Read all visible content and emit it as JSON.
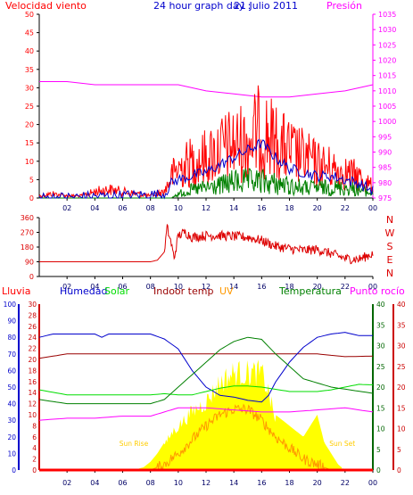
{
  "page": {
    "title_prefix": "24 hour graph day :",
    "date": "21 Julio 2011"
  },
  "colors": {
    "wind": "#ff0000",
    "wind_avg": "#0000cc",
    "wind_low": "#008000",
    "pressure": "#ff00ff",
    "direction": "#dd0000",
    "rain": "#ff0000",
    "humidity": "#0000cc",
    "solar": "#00dd00",
    "indoor": "#990000",
    "uv": "#ff9900",
    "solar_fill": "#ffff00",
    "temperature": "#008000",
    "dewpoint": "#ff00ff",
    "temp_axis": "#006600"
  },
  "chart_data": [
    {
      "type": "line",
      "id": "wind_pressure",
      "left_label": "Velocidad viento",
      "right_label": "Presión",
      "x_ticks": [
        "02",
        "04",
        "06",
        "08",
        "10",
        "12",
        "14",
        "16",
        "18",
        "20",
        "22",
        "00"
      ],
      "x_hours": [
        2,
        4,
        6,
        8,
        10,
        12,
        14,
        16,
        18,
        20,
        22,
        24
      ],
      "y_left_ticks": [
        0,
        5,
        10,
        15,
        20,
        25,
        30,
        35,
        40,
        45,
        50
      ],
      "y_left_range": [
        0,
        50
      ],
      "y_right_ticks": [
        975,
        980,
        985,
        990,
        995,
        1000,
        1005,
        1010,
        1015,
        1020,
        1025,
        1030,
        1035
      ],
      "y_right_range": [
        975,
        1035
      ],
      "series": [
        {
          "name": "Presión",
          "axis": "right",
          "x": [
            0,
            2,
            4,
            6,
            8,
            10,
            12,
            14,
            16,
            18,
            20,
            22,
            24
          ],
          "y": [
            1013,
            1013,
            1012,
            1012,
            1012,
            1012,
            1010,
            1009,
            1008,
            1008,
            1009,
            1010,
            1012
          ]
        },
        {
          "axis": "left",
          "kind": "envelope",
          "x": [
            0,
            1,
            2,
            3,
            4,
            5,
            6,
            7,
            8,
            9,
            9.5,
            10,
            11,
            12,
            13,
            14,
            15,
            16,
            17,
            18,
            19,
            20,
            21,
            22,
            23,
            24
          ],
          "y": [
            1,
            2,
            1,
            1,
            3,
            4,
            3,
            2,
            1,
            3,
            10,
            14,
            17,
            19,
            23,
            25,
            27,
            32,
            26,
            22,
            19,
            16,
            14,
            12,
            10,
            5
          ]
        },
        {
          "axis": "left",
          "kind": "line",
          "x": [
            0,
            9,
            9.5,
            10,
            11,
            12,
            13,
            14,
            15,
            16,
            17,
            18,
            19,
            20,
            21,
            22,
            23,
            24
          ],
          "y": [
            0,
            1,
            4,
            5,
            6,
            7,
            9,
            11,
            13,
            15,
            11,
            8,
            7,
            6,
            6,
            5,
            4,
            2
          ]
        },
        {
          "axis": "left",
          "kind": "envelope",
          "x": [
            0,
            9.5,
            10,
            11,
            12,
            13,
            14,
            15,
            16,
            17,
            18,
            19,
            20,
            21,
            22,
            23,
            24
          ],
          "y": [
            0,
            0,
            2,
            4,
            5,
            6,
            8,
            8,
            8,
            7,
            6,
            5,
            5,
            5,
            5,
            4,
            2
          ]
        }
      ]
    },
    {
      "type": "line",
      "id": "wind_direction",
      "x_ticks": [
        "02",
        "04",
        "06",
        "08",
        "10",
        "12",
        "14",
        "16",
        "18",
        "20",
        "22",
        "00"
      ],
      "x_hours": [
        2,
        4,
        6,
        8,
        10,
        12,
        14,
        16,
        18,
        20,
        22,
        24
      ],
      "y_ticks": [
        0,
        90,
        180,
        270,
        360
      ],
      "y_range": [
        0,
        360
      ],
      "compass": [
        "N",
        "W",
        "S",
        "E",
        "N"
      ],
      "series": [
        {
          "axis": "left",
          "x": [
            0,
            8,
            8.5,
            9,
            9.2,
            9.5,
            9.7,
            10,
            10.5,
            11,
            12,
            13,
            14,
            15,
            16,
            17,
            18,
            19,
            20,
            21,
            22,
            23,
            24
          ],
          "y": [
            90,
            90,
            100,
            150,
            300,
            200,
            110,
            250,
            270,
            240,
            250,
            250,
            245,
            240,
            220,
            185,
            170,
            160,
            165,
            140,
            110,
            105,
            140
          ]
        }
      ]
    },
    {
      "type": "line",
      "id": "multi",
      "left_labels": [
        "Lluvia",
        "Humedad",
        "Solar",
        "Indoor temp",
        "UV",
        "Temperatura",
        "Punto rocío"
      ],
      "x_ticks": [
        "02",
        "04",
        "06",
        "08",
        "10",
        "12",
        "14",
        "16",
        "18",
        "20",
        "22",
        "00"
      ],
      "x_hours": [
        2,
        4,
        6,
        8,
        10,
        12,
        14,
        16,
        18,
        20,
        22,
        24
      ],
      "rain_ticks": [
        0,
        10,
        20,
        30,
        40,
        50,
        60,
        70,
        80,
        90,
        100
      ],
      "rain_range": [
        0,
        100
      ],
      "humidity_ticks": [
        0,
        2,
        4,
        6,
        8,
        10,
        12,
        14,
        16,
        18,
        20,
        22,
        24,
        26,
        28,
        30
      ],
      "humidity_range": [
        0,
        30
      ],
      "temp_ticks": [
        0,
        5,
        10,
        15,
        20,
        25,
        30,
        35,
        40
      ],
      "temp_range": [
        0,
        40
      ],
      "dew_ticks": [
        0,
        5,
        10,
        15,
        20,
        25,
        30,
        35,
        40
      ],
      "dew_range": [
        0,
        40
      ],
      "sunrise": {
        "label": "Sun Rise",
        "hour": 6.8
      },
      "sunset": {
        "label": "Sun Set",
        "hour": 21.8
      },
      "series": [
        {
          "name": "Solar",
          "kind": "fill",
          "axis": "humidity",
          "x": [
            0,
            6.8,
            7.5,
            8,
            8.5,
            9,
            9.5,
            10,
            11,
            12,
            12.5,
            13,
            14,
            15,
            16,
            16.5,
            17,
            18,
            19,
            20,
            20.5,
            21,
            21.5,
            22,
            24
          ],
          "y": [
            0,
            0,
            0.5,
            1.5,
            3,
            5,
            7.5,
            9,
            12,
            14,
            16,
            18,
            20,
            20,
            20,
            16,
            10,
            8,
            6,
            10,
            5,
            3,
            1,
            0,
            0
          ]
        },
        {
          "name": "UV",
          "kind": "line",
          "axis": "humidity",
          "x": [
            0,
            8,
            9,
            10,
            11,
            12,
            13,
            14,
            15,
            16,
            17,
            18,
            19,
            20,
            21,
            24
          ],
          "y": [
            0,
            0,
            1,
            3,
            5.5,
            8,
            10,
            11,
            11,
            9,
            6,
            4,
            2,
            1,
            0,
            0
          ]
        },
        {
          "name": "Indoor temp",
          "kind": "line",
          "axis": "humidity",
          "x": [
            0,
            2,
            4,
            6,
            8,
            10,
            12,
            14,
            16,
            18,
            20,
            22,
            24
          ],
          "y": [
            20.2,
            21,
            21,
            21,
            21,
            21,
            21,
            21,
            21,
            21,
            21,
            20.5,
            20.6
          ]
        },
        {
          "name": "Humedad",
          "kind": "line",
          "axis": "rain",
          "x": [
            0,
            1,
            2,
            3,
            4,
            4.5,
            5,
            6,
            7,
            8,
            9,
            10,
            11,
            12,
            13,
            14,
            15,
            16,
            16.5,
            17,
            18,
            19,
            20,
            21,
            22,
            23,
            24
          ],
          "y": [
            80,
            82,
            82,
            82,
            82,
            80,
            82,
            82,
            82,
            82,
            79,
            73,
            60,
            50,
            45,
            44,
            42,
            41,
            45,
            53,
            65,
            74,
            80,
            82,
            83,
            81,
            81
          ]
        },
        {
          "kind": "line",
          "axis": "humidity",
          "x": [
            0,
            2,
            4,
            6,
            8,
            9,
            10,
            11,
            12,
            13,
            14,
            15,
            16,
            17,
            18,
            19,
            20,
            21,
            22,
            23,
            24
          ],
          "y": [
            14.5,
            13.6,
            13.6,
            13.6,
            13.6,
            13.8,
            13.6,
            13.6,
            14.2,
            14.8,
            15.2,
            15.2,
            15,
            14.6,
            14.2,
            14.2,
            14.2,
            14.5,
            15,
            15.5,
            15.4
          ]
        },
        {
          "name": "Temperatura",
          "kind": "line",
          "axis": "temp",
          "x": [
            0,
            2,
            4,
            6,
            8,
            9,
            10,
            11,
            12,
            13,
            14,
            15,
            16,
            17,
            18,
            19,
            20,
            21,
            22,
            23,
            24
          ],
          "y": [
            17,
            16,
            16,
            16,
            16,
            17,
            20,
            23,
            26,
            29,
            31,
            32,
            31.5,
            28,
            25,
            22,
            21,
            20,
            19.5,
            19,
            18.5
          ]
        },
        {
          "name": "Punto rocío",
          "kind": "line",
          "axis": "dew",
          "x": [
            0,
            2,
            4,
            6,
            8,
            10,
            12,
            14,
            16,
            18,
            20,
            22,
            24
          ],
          "y": [
            12,
            12.5,
            12.5,
            13,
            13,
            15,
            15,
            14.5,
            14,
            14,
            14.5,
            15,
            14
          ]
        },
        {
          "name": "Lluvia",
          "kind": "line",
          "axis": "rain",
          "x": [
            0,
            24
          ],
          "y": [
            0,
            0
          ]
        }
      ]
    }
  ]
}
